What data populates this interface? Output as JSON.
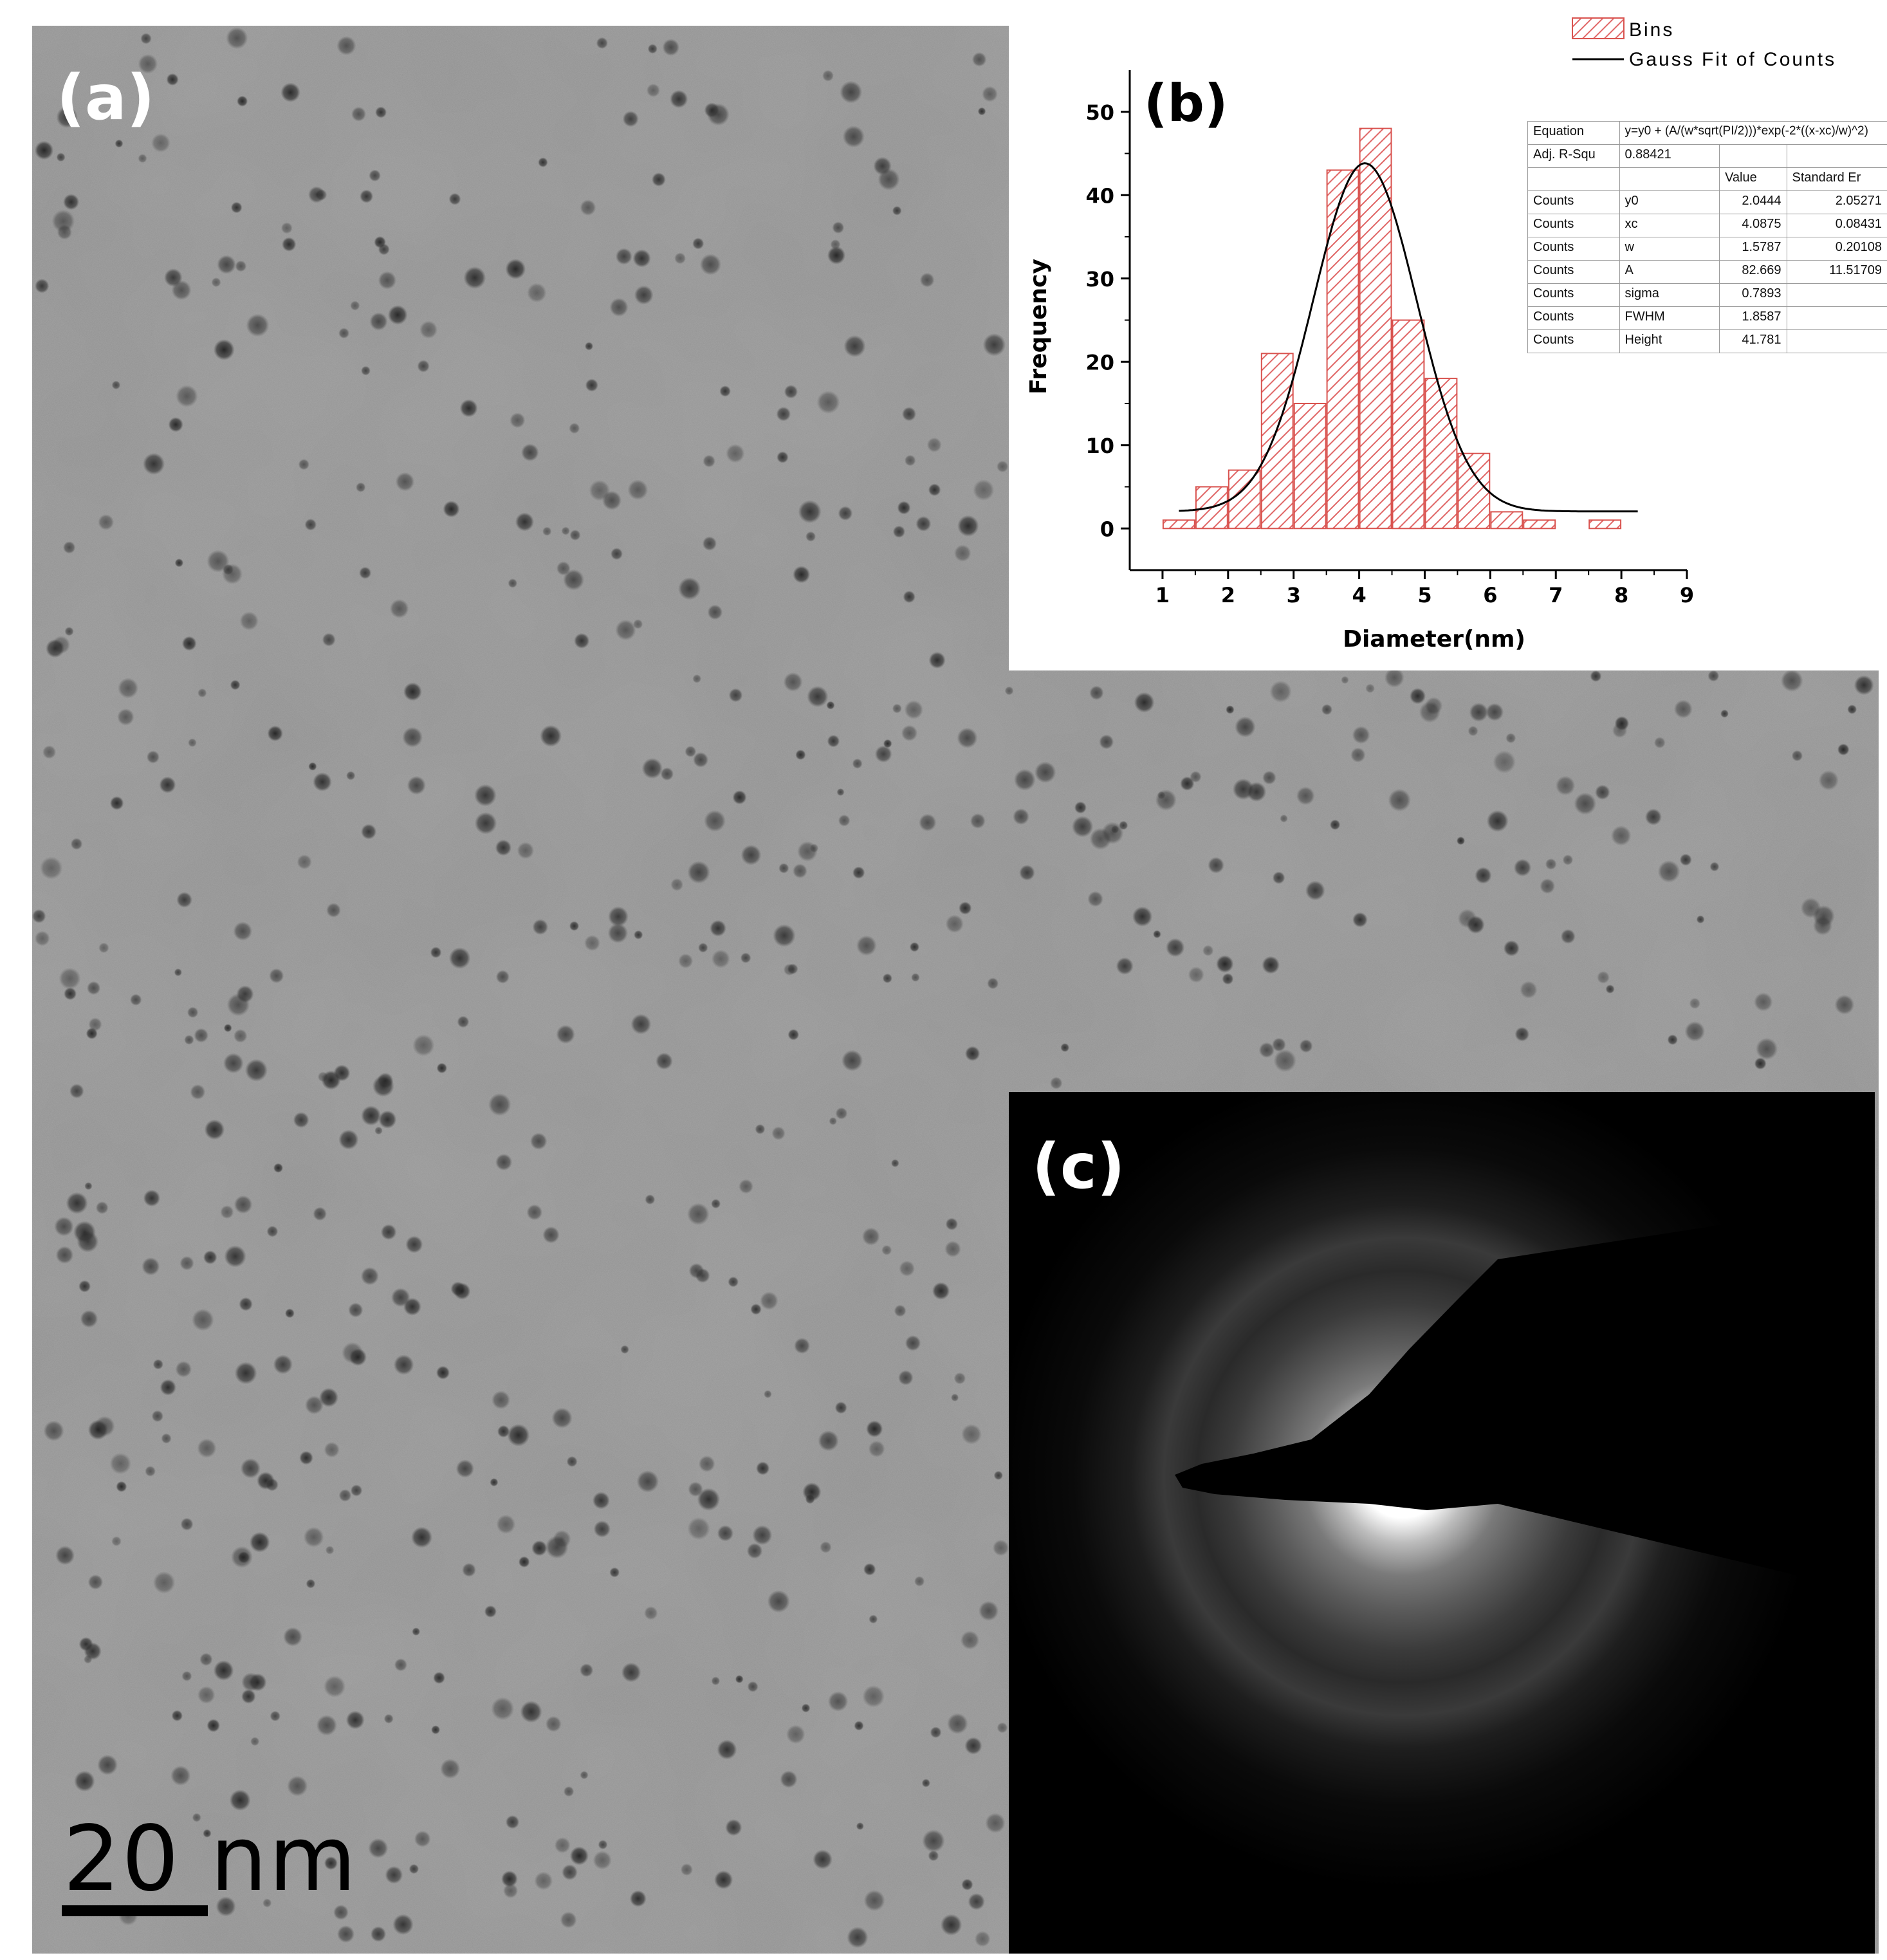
{
  "figure": {
    "panel_a": {
      "label": "(a)",
      "scale_bar_text": "20 nm"
    },
    "panel_b": {
      "label": "(b)"
    },
    "panel_c": {
      "label": "(c)"
    }
  },
  "colors": {
    "bar_stroke": "#d9534f",
    "bar_hatch": "#e06666",
    "fit_line": "#000000",
    "tem_background": "#8f8f8f",
    "diffraction_background": "#000000"
  },
  "chart_data": {
    "type": "bar",
    "title": "",
    "xlabel": "Diameter(nm)",
    "ylabel": "Frequency",
    "xlim": [
      0.5,
      9
    ],
    "ylim": [
      -5,
      55
    ],
    "xticks": [
      1,
      2,
      3,
      4,
      5,
      6,
      7,
      8,
      9
    ],
    "yticks": [
      0,
      10,
      20,
      30,
      40,
      50
    ],
    "legend": {
      "placement": "top-right",
      "entries": [
        "Bins",
        "Gauss Fit of Counts"
      ]
    },
    "series": [
      {
        "name": "Bins",
        "kind": "bar",
        "bin_width": 0.5,
        "x": [
          1.25,
          1.75,
          2.25,
          2.75,
          3.25,
          3.75,
          4.25,
          4.75,
          5.25,
          5.75,
          6.25,
          6.75,
          7.25,
          7.75,
          8.25
        ],
        "values": [
          1,
          5,
          7,
          21,
          15,
          43,
          48,
          25,
          18,
          9,
          2,
          1,
          0,
          1,
          0
        ]
      },
      {
        "name": "Gauss Fit of Counts",
        "kind": "line",
        "model": {
          "y0": 2.0444,
          "xc": 4.0875,
          "w": 1.5787,
          "A": 82.669
        },
        "x_range": [
          1.25,
          8.25
        ]
      }
    ],
    "fit_table": {
      "rows": [
        [
          "Equation",
          "y=y0 + (A/(w*sqrt(PI/2)))*exp(-2*((x-xc)/w)^2)",
          "",
          ""
        ],
        [
          "Adj. R-Squ",
          "0.88421",
          "",
          ""
        ],
        [
          "",
          "",
          "Value",
          "Standard Er"
        ],
        [
          "Counts",
          "y0",
          "2.0444",
          "2.05271"
        ],
        [
          "Counts",
          "xc",
          "4.0875",
          "0.08431"
        ],
        [
          "Counts",
          "w",
          "1.5787",
          "0.20108"
        ],
        [
          "Counts",
          "A",
          "82.669",
          "11.51709"
        ],
        [
          "Counts",
          "sigma",
          "0.7893",
          ""
        ],
        [
          "Counts",
          "FWHM",
          "1.8587",
          ""
        ],
        [
          "Counts",
          "Height",
          "41.781",
          ""
        ]
      ]
    }
  }
}
